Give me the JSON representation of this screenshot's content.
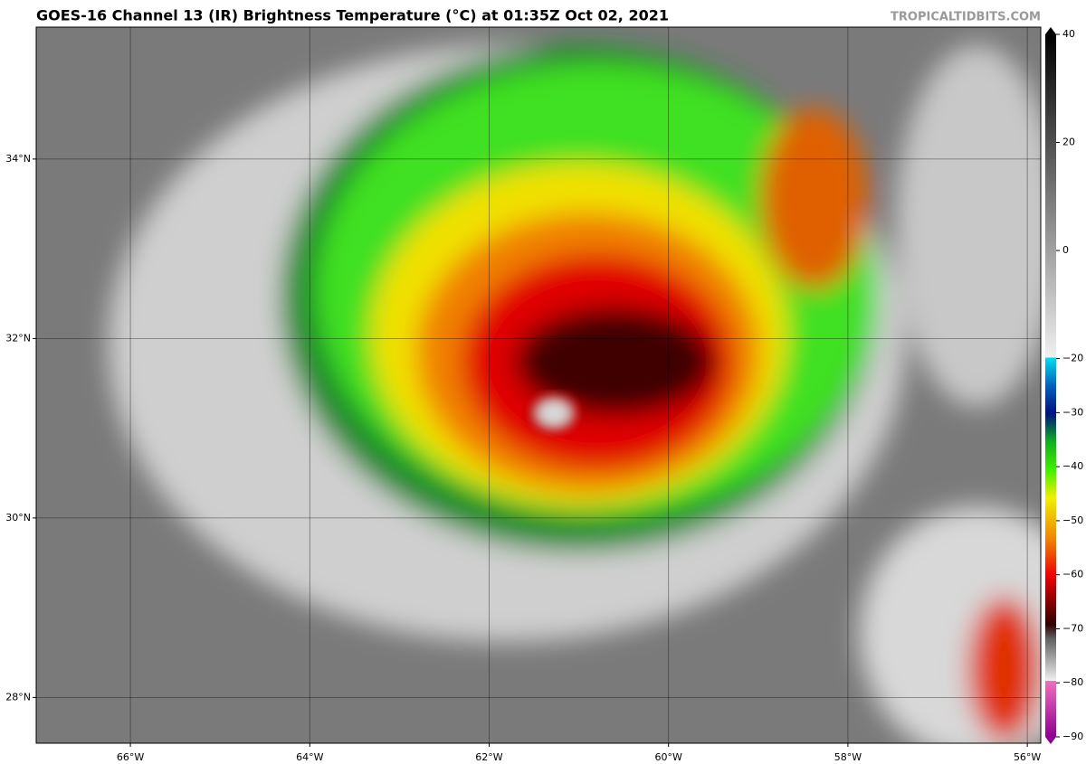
{
  "header": {
    "title": "GOES-16 Channel 13 (IR) Brightness Temperature (°C) at 01:35Z Oct 02, 2021",
    "source": "TROPICALTIDBITS.COM"
  },
  "map": {
    "lon_range": [
      -67.05,
      -55.85
    ],
    "lat_range": [
      27.49,
      35.47
    ],
    "lon_ticks": [
      {
        "value": -66,
        "label": "66°W"
      },
      {
        "value": -64,
        "label": "64°W"
      },
      {
        "value": -62,
        "label": "62°W"
      },
      {
        "value": -60,
        "label": "60°W"
      },
      {
        "value": -58,
        "label": "58°W"
      },
      {
        "value": -56,
        "label": "56°W"
      }
    ],
    "lat_ticks": [
      {
        "value": 28,
        "label": "28°N"
      },
      {
        "value": 30,
        "label": "30°N"
      },
      {
        "value": 32,
        "label": "32°N"
      },
      {
        "value": 34,
        "label": "34°N"
      }
    ]
  },
  "colorbar": {
    "range": [
      -90,
      40
    ],
    "ticks": [
      40,
      20,
      0,
      {
        "value": -20,
        "label": "−20"
      },
      {
        "value": -30,
        "label": "−30"
      },
      {
        "value": -40,
        "label": "−40"
      },
      {
        "value": -50,
        "label": "−50"
      },
      {
        "value": -60,
        "label": "−60"
      },
      {
        "value": -70,
        "label": "−70"
      },
      {
        "value": -80,
        "label": "−80"
      },
      {
        "value": -90,
        "label": "−90"
      }
    ]
  }
}
